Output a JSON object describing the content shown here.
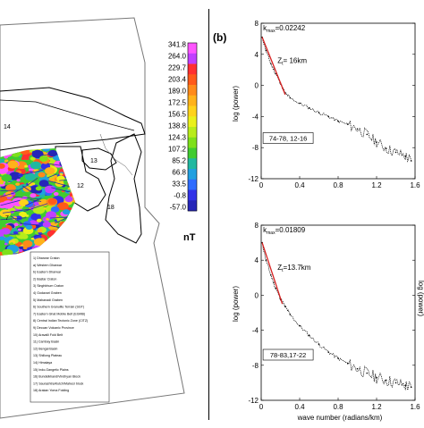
{
  "colorbar": {
    "ticks": [
      "341.8",
      "264.0",
      "229.7",
      "203.4",
      "189.0",
      "172.5",
      "156.5",
      "138.8",
      "124.3",
      "107.2",
      "85.2",
      "66.8",
      "33.5",
      "-0.8",
      "-57.0"
    ],
    "unit": "nT",
    "colors": [
      "#ff55ff",
      "#c040ff",
      "#ff3030",
      "#ff5a1a",
      "#ff8a1a",
      "#ffb21a",
      "#ffd21a",
      "#eaf01a",
      "#b8ec1a",
      "#7ee01a",
      "#40cc30",
      "#20b8a0",
      "#20a0e0",
      "#2f6cff",
      "#3232e8",
      "#2525b8"
    ]
  },
  "map": {
    "region_labels": [
      "14",
      "13",
      "12",
      "18",
      "7"
    ]
  },
  "legend_items": [
    "1) Dharwar Craton",
    "   a) Western Dharwar",
    "   b) Eastern Dharwar",
    "2) Bastar Craton",
    "3) Singhbhum Craton",
    "4) Godavari Graben",
    "5) Mahanadi Graben",
    "6) Southern Granulite Terrain (SGT)",
    "7) Eastern Ghat Mobile Belt (EGMB)",
    "8) Central Indian Tectonic Zone (CITZ)",
    "9) Deccan Volcanic Province",
    "10) Aravalli Fold Belt",
    "11) Cambay Basin",
    "12) Bengal Basin",
    "13) Shillong Plateau",
    "14) Himalaya",
    "15) Indo-Gangetic Plains",
    "16) Bundelkhand/Vindhyan Block",
    "17) Saurashtra/Kutch/Mahesr block",
    "18) Arakan Yoma Folding"
  ],
  "right_panel": {
    "label": "(b)",
    "ylabel": "log (power)",
    "xlabel": "wave number (radians/km)"
  },
  "chart_data": [
    {
      "type": "line",
      "xlabel": "",
      "ylabel": "log (power)",
      "xlim": [
        0,
        1.6
      ],
      "ylim": [
        -12,
        8
      ],
      "xticks": [
        "0",
        "0.4",
        "0.8",
        "1.2",
        "1.6"
      ],
      "yticks": [
        "8",
        "4",
        "0",
        "-4",
        "-8",
        "-12"
      ],
      "grid": false,
      "k_max": "k",
      "k_max_sub": "max",
      "k_max_value": "=0.02242",
      "depth_label": "Z",
      "depth_sub": "t",
      "depth_value": "= 16km",
      "box_label": "74-78, 12-16",
      "series": [
        {
          "color": "#000000",
          "x": [
            0.01,
            0.05,
            0.1,
            0.15,
            0.2,
            0.25,
            0.3,
            0.4,
            0.5,
            0.6,
            0.7,
            0.8,
            0.9,
            1.0,
            1.1,
            1.2,
            1.3,
            1.4,
            1.5,
            1.56
          ],
          "y": [
            6.2,
            4.5,
            2.8,
            1.5,
            0.3,
            -1.0,
            -1.6,
            -2.3,
            -2.9,
            -3.5,
            -4.0,
            -4.6,
            -5.0,
            -5.6,
            -6.3,
            -7.3,
            -8.1,
            -8.6,
            -9.1,
            -9.7
          ]
        },
        {
          "color": "#d62020",
          "x": [
            0.01,
            0.25
          ],
          "y": [
            6.2,
            -1.2
          ]
        }
      ]
    },
    {
      "type": "line",
      "xlabel": "wave number (radians/km)",
      "ylabel": "log (power)",
      "xlim": [
        0,
        1.6
      ],
      "ylim": [
        -12,
        8
      ],
      "xticks": [
        "0",
        "0.4",
        "0.8",
        "1.2",
        "1.6"
      ],
      "yticks": [
        "8",
        "4",
        "0",
        "-4",
        "-8",
        "-12"
      ],
      "grid": false,
      "k_max": "k",
      "k_max_sub": "max",
      "k_max_value": "=0.01809",
      "depth_label": "Z",
      "depth_sub": "t",
      "depth_value": "=13.7km",
      "box_label": "78-83,17-22",
      "series": [
        {
          "color": "#000000",
          "x": [
            0.01,
            0.05,
            0.1,
            0.15,
            0.2,
            0.25,
            0.3,
            0.4,
            0.5,
            0.6,
            0.7,
            0.8,
            0.9,
            1.0,
            1.1,
            1.2,
            1.3,
            1.4,
            1.5,
            1.56
          ],
          "y": [
            6.0,
            4.0,
            2.3,
            0.8,
            -0.4,
            -1.3,
            -2.2,
            -3.5,
            -4.6,
            -5.6,
            -6.5,
            -7.2,
            -7.8,
            -8.4,
            -8.9,
            -9.4,
            -9.7,
            -10.0,
            -10.3,
            -10.5
          ]
        },
        {
          "color": "#d62020",
          "x": [
            0.01,
            0.22
          ],
          "y": [
            6.0,
            -1.0
          ]
        }
      ]
    }
  ]
}
